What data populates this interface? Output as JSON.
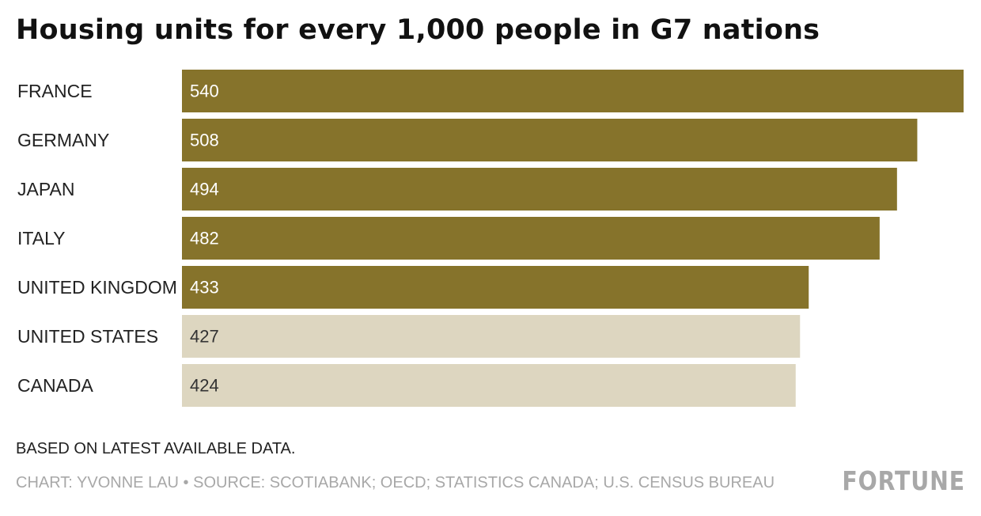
{
  "chart_data": {
    "type": "bar",
    "orientation": "horizontal",
    "title": "Housing units for every 1,000 people in G7 nations",
    "categories": [
      "FRANCE",
      "GERMANY",
      "JAPAN",
      "ITALY",
      "UNITED KINGDOM",
      "UNITED STATES",
      "CANADA"
    ],
    "values": [
      540,
      508,
      494,
      482,
      433,
      427,
      424
    ],
    "value_labels": [
      "540",
      "508",
      "494",
      "482",
      "433",
      "427",
      "424"
    ],
    "bar_colors": [
      "#86732b",
      "#86732b",
      "#86732b",
      "#86732b",
      "#86732b",
      "#ddd6c0",
      "#ddd6c0"
    ],
    "label_colors": [
      "#ffffff",
      "#ffffff",
      "#ffffff",
      "#ffffff",
      "#ffffff",
      "#333333",
      "#333333"
    ],
    "xlim": [
      0,
      540
    ],
    "xlabel": "",
    "ylabel": "",
    "grid": false,
    "legend": "none"
  },
  "note": "BASED ON LATEST AVAILABLE DATA.",
  "source": "CHART: YVONNE LAU • SOURCE: SCOTIABANK; OECD; STATISTICS CANADA; U.S. CENSUS BUREAU",
  "brand": "FORTUNE",
  "colors": {
    "highlight": "#86732b",
    "muted": "#ddd6c0",
    "logo": "#a8a8a8"
  }
}
